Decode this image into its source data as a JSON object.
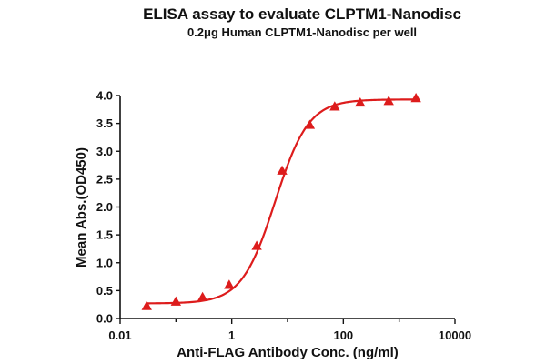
{
  "chart_data": {
    "type": "scatter",
    "title": "ELISA assay to evaluate CLPTM1-Nanodisc",
    "subtitle": "0.2μg Human CLPTM1-Nanodisc per well",
    "xlabel": "Anti-FLAG Antibody Conc. (ng/ml)",
    "ylabel": "Mean Abs.(OD450)",
    "x_scale": "log",
    "xlim": [
      0.01,
      10000
    ],
    "ylim": [
      0,
      4.0
    ],
    "x_ticks": [
      0.01,
      1,
      100,
      10000
    ],
    "x_tick_labels": [
      "0.01",
      "1",
      "100",
      "10000"
    ],
    "y_ticks": [
      0.0,
      0.5,
      1.0,
      1.5,
      2.0,
      2.5,
      3.0,
      3.5,
      4.0
    ],
    "y_tick_labels": [
      "0.0",
      "0.5",
      "1.0",
      "1.5",
      "2.0",
      "2.5",
      "3.0",
      "3.5",
      "4.0"
    ],
    "grid": false,
    "series": [
      {
        "marker": "triangle",
        "color": "#dd1c1c",
        "x": [
          0.03,
          0.1,
          0.3,
          0.9,
          2.8,
          8,
          25,
          70,
          200,
          650,
          2000
        ],
        "y": [
          0.22,
          0.3,
          0.38,
          0.6,
          1.3,
          2.65,
          3.47,
          3.8,
          3.87,
          3.9,
          3.95
        ]
      }
    ],
    "fit_curve": {
      "type": "4PL",
      "bottom": 0.27,
      "top": 3.93,
      "ec50": 6.0,
      "hill": 1.45,
      "color": "#dd1c1c"
    }
  }
}
